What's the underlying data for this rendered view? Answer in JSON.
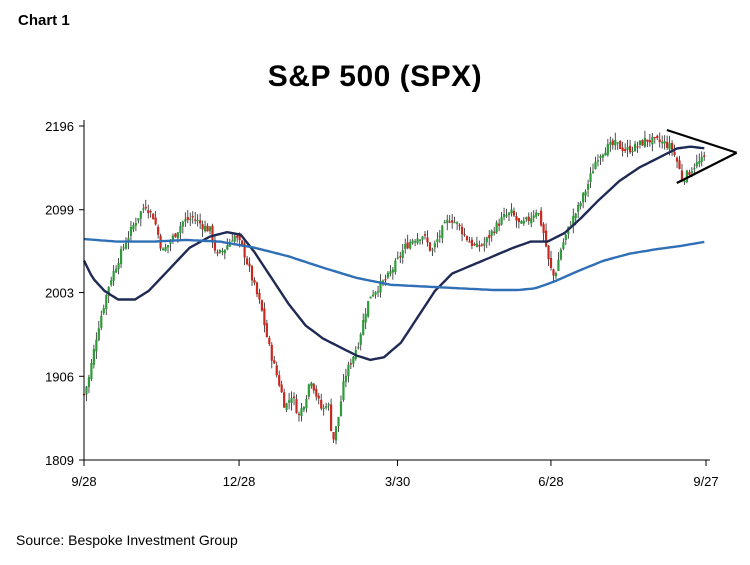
{
  "header": {
    "chart_number": "Chart 1",
    "title": "S&P 500 (SPX)",
    "source": "Source: Bespoke Investment Group"
  },
  "colors": {
    "up": "#2e9b3a",
    "down": "#c8281e",
    "wick": "#222222",
    "ma_short": "#1f2a55",
    "ma_long": "#2f6fb5",
    "axis": "#000000",
    "pattern": "#000000"
  },
  "chart_data": {
    "type": "candlestick",
    "title": "S&P 500 (SPX)",
    "y_ticks": [
      1809,
      1906,
      2003,
      2099,
      2196
    ],
    "ylim": [
      1809,
      2196
    ],
    "x_ticks": [
      {
        "label": "9/28",
        "day": 0
      },
      {
        "label": "12/28",
        "day": 91
      },
      {
        "label": "3/30",
        "day": 184
      },
      {
        "label": "6/28",
        "day": 274
      },
      {
        "label": "9/27",
        "day": 365
      }
    ],
    "xlim": [
      0,
      365
    ],
    "price_anchors": [
      [
        0,
        1885
      ],
      [
        3,
        1905
      ],
      [
        8,
        1960
      ],
      [
        15,
        2015
      ],
      [
        24,
        2060
      ],
      [
        30,
        2085
      ],
      [
        36,
        2105
      ],
      [
        41,
        2090
      ],
      [
        46,
        2050
      ],
      [
        50,
        2060
      ],
      [
        58,
        2085
      ],
      [
        64,
        2090
      ],
      [
        70,
        2080
      ],
      [
        74,
        2075
      ],
      [
        78,
        2045
      ],
      [
        83,
        2055
      ],
      [
        88,
        2070
      ],
      [
        93,
        2055
      ],
      [
        97,
        2030
      ],
      [
        100,
        2010
      ],
      [
        104,
        1985
      ],
      [
        108,
        1945
      ],
      [
        112,
        1915
      ],
      [
        115,
        1895
      ],
      [
        118,
        1870
      ],
      [
        122,
        1885
      ],
      [
        126,
        1860
      ],
      [
        130,
        1880
      ],
      [
        133,
        1905
      ],
      [
        137,
        1880
      ],
      [
        140,
        1865
      ],
      [
        143,
        1880
      ],
      [
        146,
        1830
      ],
      [
        149,
        1855
      ],
      [
        153,
        1905
      ],
      [
        157,
        1925
      ],
      [
        161,
        1945
      ],
      [
        165,
        1980
      ],
      [
        168,
        2000
      ],
      [
        173,
        2010
      ],
      [
        178,
        2020
      ],
      [
        184,
        2040
      ],
      [
        188,
        2055
      ],
      [
        193,
        2065
      ],
      [
        199,
        2070
      ],
      [
        204,
        2050
      ],
      [
        210,
        2075
      ],
      [
        215,
        2090
      ],
      [
        220,
        2080
      ],
      [
        225,
        2065
      ],
      [
        230,
        2055
      ],
      [
        235,
        2060
      ],
      [
        240,
        2075
      ],
      [
        246,
        2090
      ],
      [
        251,
        2095
      ],
      [
        256,
        2080
      ],
      [
        261,
        2088
      ],
      [
        266,
        2100
      ],
      [
        270,
        2070
      ],
      [
        273,
        2035
      ],
      [
        276,
        2020
      ],
      [
        280,
        2055
      ],
      [
        286,
        2085
      ],
      [
        291,
        2105
      ],
      [
        296,
        2130
      ],
      [
        301,
        2160
      ],
      [
        306,
        2170
      ],
      [
        312,
        2175
      ],
      [
        318,
        2168
      ],
      [
        324,
        2172
      ],
      [
        330,
        2180
      ],
      [
        336,
        2178
      ],
      [
        341,
        2176
      ],
      [
        345,
        2170
      ],
      [
        348,
        2155
      ],
      [
        351,
        2135
      ],
      [
        354,
        2140
      ],
      [
        358,
        2150
      ],
      [
        362,
        2155
      ],
      [
        365,
        2160
      ]
    ],
    "series": [
      {
        "name": "",
        "kind": "moving-average-short",
        "anchors": [
          [
            0,
            2040
          ],
          [
            5,
            2020
          ],
          [
            12,
            2005
          ],
          [
            20,
            1995
          ],
          [
            30,
            1995
          ],
          [
            38,
            2005
          ],
          [
            50,
            2030
          ],
          [
            62,
            2055
          ],
          [
            74,
            2068
          ],
          [
            84,
            2073
          ],
          [
            92,
            2070
          ],
          [
            100,
            2050
          ],
          [
            110,
            2020
          ],
          [
            120,
            1990
          ],
          [
            130,
            1965
          ],
          [
            140,
            1950
          ],
          [
            150,
            1940
          ],
          [
            160,
            1930
          ],
          [
            168,
            1925
          ],
          [
            176,
            1928
          ],
          [
            186,
            1945
          ],
          [
            196,
            1975
          ],
          [
            206,
            2005
          ],
          [
            216,
            2025
          ],
          [
            228,
            2035
          ],
          [
            240,
            2045
          ],
          [
            252,
            2055
          ],
          [
            262,
            2062
          ],
          [
            272,
            2062
          ],
          [
            282,
            2072
          ],
          [
            292,
            2090
          ],
          [
            302,
            2110
          ],
          [
            314,
            2132
          ],
          [
            326,
            2148
          ],
          [
            338,
            2160
          ],
          [
            348,
            2170
          ],
          [
            356,
            2172
          ],
          [
            365,
            2170
          ]
        ]
      },
      {
        "name": "",
        "kind": "moving-average-long",
        "anchors": [
          [
            0,
            2065
          ],
          [
            20,
            2062
          ],
          [
            40,
            2062
          ],
          [
            60,
            2064
          ],
          [
            80,
            2062
          ],
          [
            100,
            2055
          ],
          [
            120,
            2045
          ],
          [
            140,
            2032
          ],
          [
            160,
            2020
          ],
          [
            180,
            2012
          ],
          [
            200,
            2010
          ],
          [
            220,
            2008
          ],
          [
            240,
            2006
          ],
          [
            255,
            2006
          ],
          [
            265,
            2008
          ],
          [
            275,
            2015
          ],
          [
            290,
            2028
          ],
          [
            305,
            2040
          ],
          [
            320,
            2048
          ],
          [
            335,
            2053
          ],
          [
            350,
            2057
          ],
          [
            365,
            2062
          ]
        ]
      }
    ],
    "annotations": [
      {
        "kind": "symmetrical-triangle",
        "start_day": 342,
        "end_day": 383,
        "apex_value": 2165
      }
    ]
  }
}
